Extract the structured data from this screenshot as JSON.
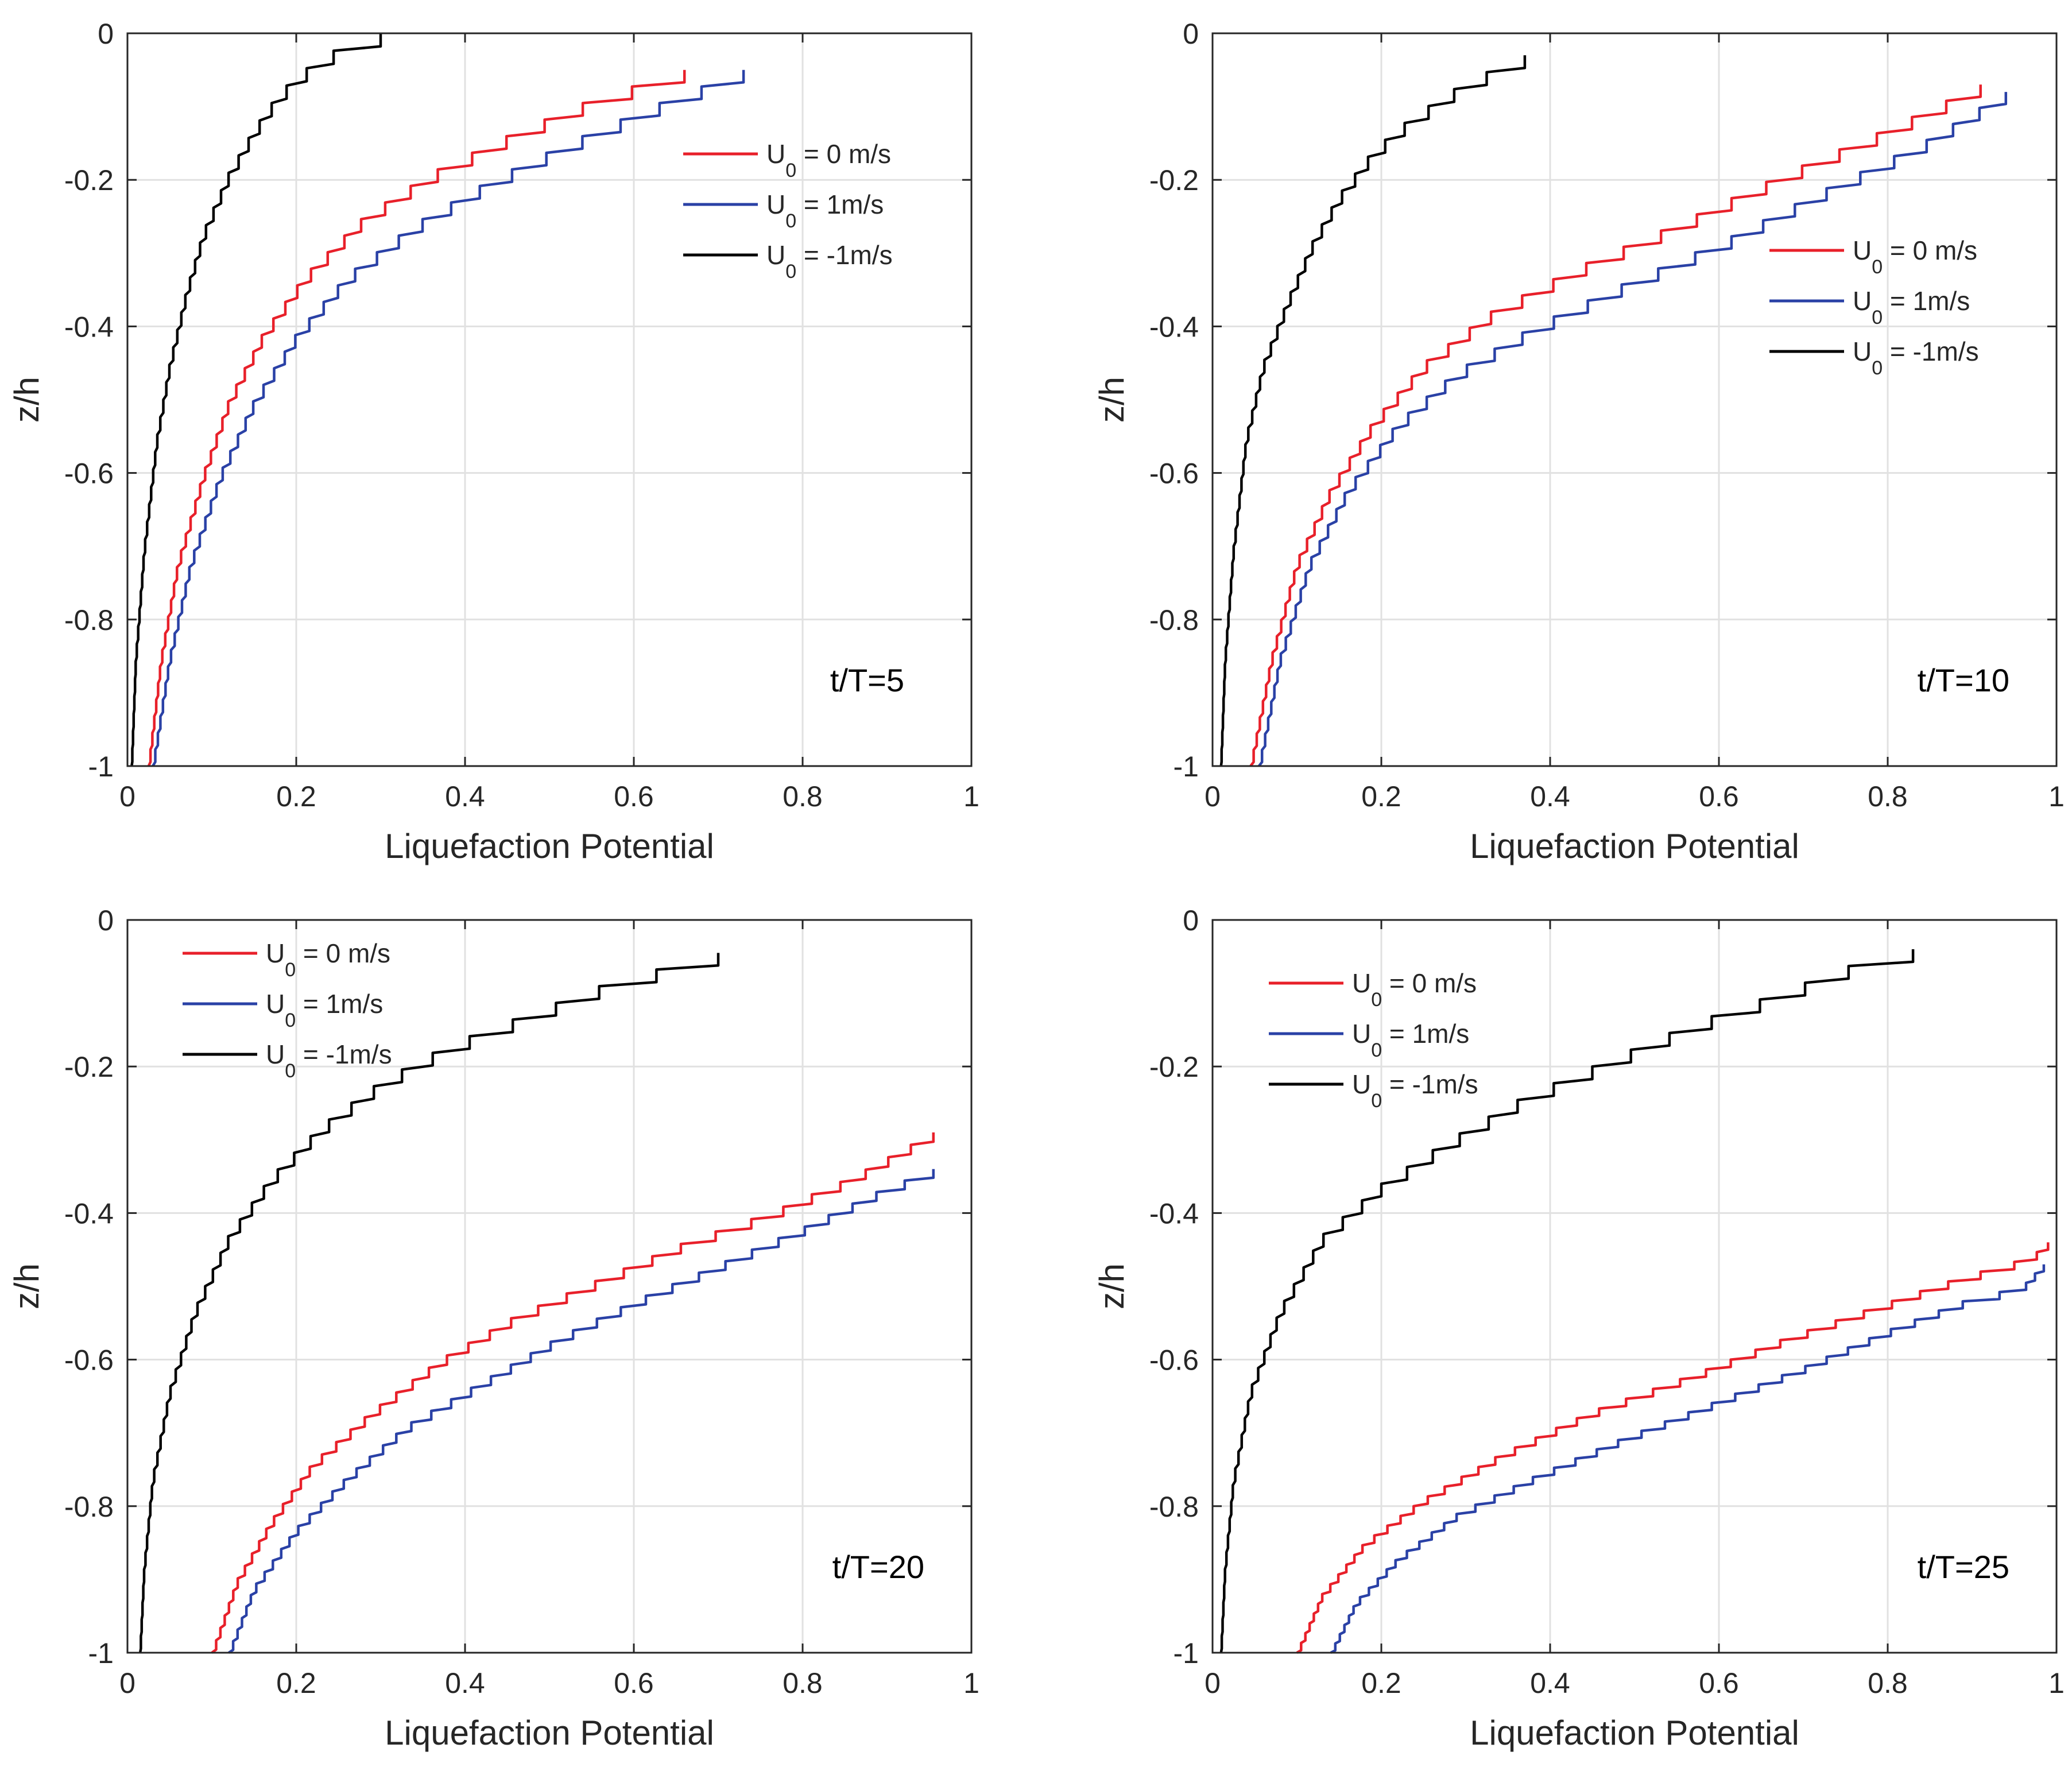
{
  "chart_data": [
    {
      "type": "line",
      "annotation": "t/T=5",
      "xlabel": "Liquefaction Potential",
      "ylabel": "z/h",
      "xlim": [
        0,
        1
      ],
      "ylim": [
        -1,
        0
      ],
      "xticks": [
        "0",
        "0.2",
        "0.4",
        "0.6",
        "0.8",
        "1"
      ],
      "yticks": [
        "0",
        "-0.2",
        "-0.4",
        "-0.6",
        "-0.8",
        "-1"
      ],
      "grid": true,
      "legend_position": "top-right",
      "series": [
        {
          "name": "U0 = 0 m/s",
          "label_main": "U",
          "label_sub": "0",
          "label_rest": " = 0 m/s",
          "color": "#e8202a",
          "x": [
            0.025,
            0.04,
            0.06,
            0.09,
            0.12,
            0.16,
            0.21,
            0.28,
            0.36,
            0.45,
            0.55,
            0.66
          ],
          "z": [
            -1.0,
            -0.85,
            -0.72,
            -0.6,
            -0.5,
            -0.41,
            -0.33,
            -0.25,
            -0.19,
            -0.14,
            -0.09,
            -0.05
          ]
        },
        {
          "name": "U0 = 1m/s",
          "label_main": "U",
          "label_sub": "0",
          "label_rest": " = 1m/s",
          "color": "#2a41a6",
          "x": [
            0.03,
            0.05,
            0.075,
            0.11,
            0.15,
            0.2,
            0.26,
            0.34,
            0.43,
            0.52,
            0.62,
            0.73
          ],
          "z": [
            -1.0,
            -0.85,
            -0.72,
            -0.6,
            -0.5,
            -0.41,
            -0.33,
            -0.26,
            -0.2,
            -0.15,
            -0.1,
            -0.05
          ]
        },
        {
          "name": "U0 = -1m/s",
          "label_main": "U",
          "label_sub": "0",
          "label_rest": " = -1m/s",
          "color": "#000000",
          "x": [
            0.005,
            0.01,
            0.02,
            0.035,
            0.05,
            0.07,
            0.09,
            0.12,
            0.15,
            0.18,
            0.22,
            0.25,
            0.29,
            0.3
          ],
          "z": [
            -1.0,
            -0.85,
            -0.7,
            -0.55,
            -0.45,
            -0.35,
            -0.27,
            -0.19,
            -0.13,
            -0.08,
            -0.04,
            -0.02,
            -0.01,
            0.0
          ]
        }
      ]
    },
    {
      "type": "line",
      "annotation": "t/T=10",
      "xlabel": "Liquefaction Potential",
      "ylabel": "z/h",
      "xlim": [
        0,
        1
      ],
      "ylim": [
        -1,
        0
      ],
      "xticks": [
        "0",
        "0.2",
        "0.4",
        "0.6",
        "0.8",
        "1"
      ],
      "yticks": [
        "0",
        "-0.2",
        "-0.4",
        "-0.6",
        "-0.8",
        "-1"
      ],
      "grid": true,
      "legend_position": "top-right",
      "series": [
        {
          "name": "U0 = 0 m/s",
          "label_main": "U",
          "label_sub": "0",
          "label_rest": " = 0 m/s",
          "color": "#e8202a",
          "x": [
            0.045,
            0.07,
            0.1,
            0.14,
            0.19,
            0.25,
            0.33,
            0.43,
            0.55,
            0.68,
            0.8,
            0.91
          ],
          "z": [
            -1.0,
            -0.85,
            -0.72,
            -0.62,
            -0.53,
            -0.45,
            -0.38,
            -0.32,
            -0.26,
            -0.19,
            -0.13,
            -0.07
          ]
        },
        {
          "name": "U0 = 1m/s",
          "label_main": "U",
          "label_sub": "0",
          "label_rest": " = 1m/s",
          "color": "#2a41a6",
          "x": [
            0.055,
            0.08,
            0.115,
            0.16,
            0.22,
            0.29,
            0.38,
            0.49,
            0.61,
            0.73,
            0.84,
            0.94
          ],
          "z": [
            -1.0,
            -0.85,
            -0.72,
            -0.62,
            -0.53,
            -0.46,
            -0.4,
            -0.34,
            -0.28,
            -0.21,
            -0.15,
            -0.08
          ]
        },
        {
          "name": "U0 = -1m/s",
          "label_main": "U",
          "label_sub": "0",
          "label_rest": " = -1m/s",
          "color": "#000000",
          "x": [
            0.01,
            0.015,
            0.025,
            0.04,
            0.06,
            0.09,
            0.12,
            0.15,
            0.19,
            0.23,
            0.28,
            0.33,
            0.37
          ],
          "z": [
            -1.0,
            -0.85,
            -0.7,
            -0.55,
            -0.45,
            -0.36,
            -0.28,
            -0.22,
            -0.16,
            -0.12,
            -0.08,
            -0.05,
            -0.03
          ]
        }
      ]
    },
    {
      "type": "line",
      "annotation": "t/T=20",
      "xlabel": "Liquefaction Potential",
      "ylabel": "z/h",
      "xlim": [
        0,
        1
      ],
      "ylim": [
        -1,
        0
      ],
      "xticks": [
        "0",
        "0.2",
        "0.4",
        "0.6",
        "0.8",
        "1"
      ],
      "yticks": [
        "0",
        "-0.2",
        "-0.4",
        "-0.6",
        "-0.8",
        "-1"
      ],
      "grid": true,
      "legend_position": "top-left",
      "series": [
        {
          "name": "U0 = 0 m/s",
          "label_main": "U",
          "label_sub": "0",
          "label_rest": " = 0 m/s",
          "color": "#e8202a",
          "x": [
            0.1,
            0.13,
            0.17,
            0.22,
            0.29,
            0.37,
            0.46,
            0.56,
            0.66,
            0.76,
            0.86,
            0.955
          ],
          "z": [
            -1.0,
            -0.9,
            -0.82,
            -0.74,
            -0.67,
            -0.6,
            -0.54,
            -0.49,
            -0.44,
            -0.4,
            -0.35,
            -0.29
          ]
        },
        {
          "name": "U0 = 1m/s",
          "label_main": "U",
          "label_sub": "0",
          "label_rest": " = 1m/s",
          "color": "#2a41a6",
          "x": [
            0.12,
            0.15,
            0.2,
            0.26,
            0.33,
            0.42,
            0.51,
            0.6,
            0.7,
            0.8,
            0.89,
            0.955
          ],
          "z": [
            -1.0,
            -0.91,
            -0.83,
            -0.76,
            -0.69,
            -0.63,
            -0.57,
            -0.52,
            -0.47,
            -0.42,
            -0.37,
            -0.34
          ]
        },
        {
          "name": "U0 = -1m/s",
          "label_main": "U",
          "label_sub": "0",
          "label_rest": " = -1m/s",
          "color": "#000000",
          "x": [
            0.015,
            0.02,
            0.03,
            0.05,
            0.08,
            0.12,
            0.17,
            0.23,
            0.3,
            0.38,
            0.47,
            0.56,
            0.65,
            0.7
          ],
          "z": [
            -1.0,
            -0.88,
            -0.76,
            -0.64,
            -0.53,
            -0.43,
            -0.35,
            -0.28,
            -0.22,
            -0.17,
            -0.13,
            -0.09,
            -0.06,
            -0.045
          ]
        }
      ]
    },
    {
      "type": "line",
      "annotation": "t/T=25",
      "xlabel": "Liquefaction Potential",
      "ylabel": "z/h",
      "xlim": [
        0,
        1
      ],
      "ylim": [
        -1,
        0
      ],
      "xticks": [
        "0",
        "0.2",
        "0.4",
        "0.6",
        "0.8",
        "1"
      ],
      "yticks": [
        "0",
        "-0.2",
        "-0.4",
        "-0.6",
        "-0.8",
        "-1"
      ],
      "grid": true,
      "legend_position": "top-left",
      "series": [
        {
          "name": "U0 = 0 m/s",
          "label_main": "U",
          "label_sub": "0",
          "label_rest": " = 0 m/s",
          "color": "#e8202a",
          "x": [
            0.1,
            0.13,
            0.18,
            0.25,
            0.34,
            0.45,
            0.57,
            0.68,
            0.78,
            0.88,
            0.97,
            0.99
          ],
          "z": [
            -1.0,
            -0.92,
            -0.85,
            -0.79,
            -0.73,
            -0.67,
            -0.62,
            -0.57,
            -0.53,
            -0.49,
            -0.46,
            -0.44
          ]
        },
        {
          "name": "U0 = 1m/s",
          "label_main": "U",
          "label_sub": "0",
          "label_rest": " = 1m/s",
          "color": "#2a41a6",
          "x": [
            0.14,
            0.17,
            0.22,
            0.29,
            0.38,
            0.48,
            0.59,
            0.7,
            0.8,
            0.89,
            0.96,
            0.985
          ],
          "z": [
            -1.0,
            -0.93,
            -0.87,
            -0.81,
            -0.76,
            -0.71,
            -0.66,
            -0.61,
            -0.56,
            -0.52,
            -0.5,
            -0.47
          ]
        },
        {
          "name": "U0 = -1m/s",
          "label_main": "U",
          "label_sub": "0",
          "label_rest": " = -1m/s",
          "color": "#000000",
          "x": [
            0.01,
            0.015,
            0.025,
            0.045,
            0.08,
            0.13,
            0.2,
            0.28,
            0.37,
            0.47,
            0.57,
            0.67,
            0.76,
            0.83
          ],
          "z": [
            -1.0,
            -0.88,
            -0.76,
            -0.64,
            -0.53,
            -0.43,
            -0.36,
            -0.3,
            -0.24,
            -0.19,
            -0.14,
            -0.1,
            -0.06,
            -0.04
          ]
        }
      ]
    }
  ]
}
